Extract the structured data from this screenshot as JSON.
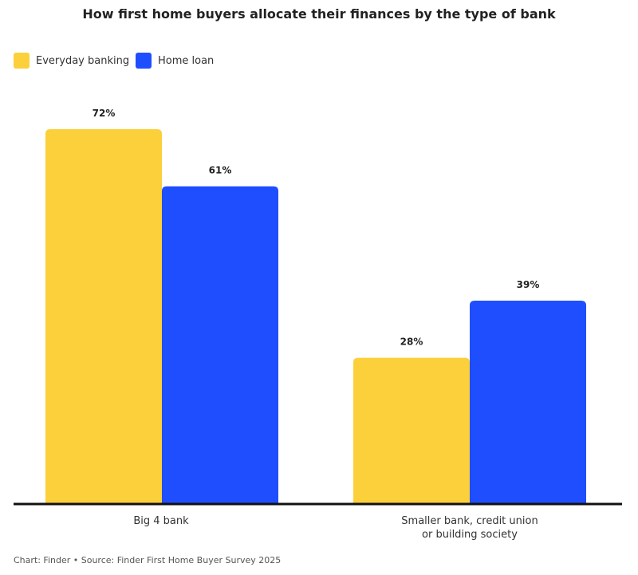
{
  "chart_data": {
    "type": "bar",
    "title": "How first home buyers allocate their finances by the type of bank",
    "categories": [
      "Big 4 bank",
      "Smaller bank, credit union or building society"
    ],
    "series": [
      {
        "name": "Everyday banking",
        "values": [
          72,
          28
        ],
        "color": "#FCD03A",
        "labels": [
          "72%",
          "28%"
        ]
      },
      {
        "name": "Home loan",
        "values": [
          61,
          39
        ],
        "color": "#1F4EFF",
        "labels": [
          "61%",
          "39%"
        ]
      }
    ],
    "ylim": [
      0,
      72
    ],
    "grid": false,
    "legend": "top-left",
    "source": "Chart: Finder • Source: Finder First Home Buyer Survey 2025"
  }
}
